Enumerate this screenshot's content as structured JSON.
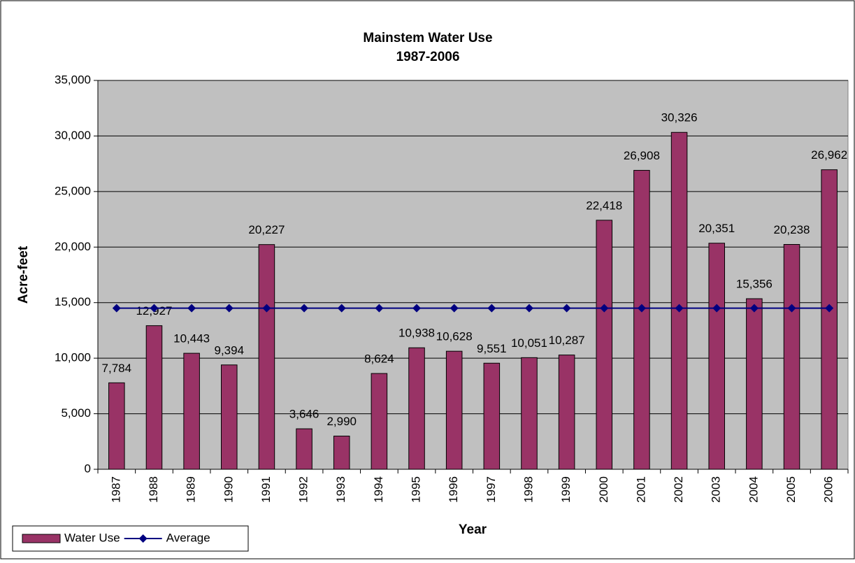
{
  "chart_data": {
    "type": "bar",
    "title": "Mainstem Water Use",
    "subtitle": "1987-2006",
    "x_label": "Year",
    "y_label": "Acre-feet",
    "categories": [
      "1987",
      "1988",
      "1989",
      "1990",
      "1991",
      "1992",
      "1993",
      "1994",
      "1995",
      "1996",
      "1997",
      "1998",
      "1999",
      "2000",
      "2001",
      "2002",
      "2003",
      "2004",
      "2005",
      "2006"
    ],
    "series": [
      {
        "name": "Water Use",
        "type": "bar",
        "color": "#993366",
        "values": [
          7784,
          12927,
          10443,
          9394,
          20227,
          3646,
          2990,
          8624,
          10938,
          10628,
          9551,
          10051,
          10287,
          22418,
          26908,
          30326,
          20351,
          15356,
          20238,
          26962
        ],
        "value_labels": [
          "7,784",
          "12,927",
          "10,443",
          "9,394",
          "20,227",
          "3,646",
          "2,990",
          "8,624",
          "10,938",
          "10,628",
          "9,551",
          "10,051",
          "10,287",
          "22,418",
          "26,908",
          "30,326",
          "20,351",
          "15,356",
          "20,238",
          "26,962"
        ]
      },
      {
        "name": "Average",
        "type": "line",
        "color": "#000080",
        "values": [
          14502,
          14502,
          14502,
          14502,
          14502,
          14502,
          14502,
          14502,
          14502,
          14502,
          14502,
          14502,
          14502,
          14502,
          14502,
          14502,
          14502,
          14502,
          14502,
          14502
        ]
      }
    ],
    "ylim": [
      0,
      35000
    ],
    "yticks": [
      0,
      {
        "value": 5000,
        "label": "5,000"
      },
      {
        "value": 10000,
        "label": "10,000"
      },
      {
        "value": 15000,
        "label": "15,000"
      },
      {
        "value": 20000,
        "label": "20,000"
      },
      {
        "value": 25000,
        "label": "25,000"
      },
      {
        "value": 30000,
        "label": "30,000"
      },
      {
        "value": 35000,
        "label": "35,000"
      }
    ],
    "grid": true,
    "legend": "bottom-left",
    "plot_background": "#c0c0c0"
  }
}
